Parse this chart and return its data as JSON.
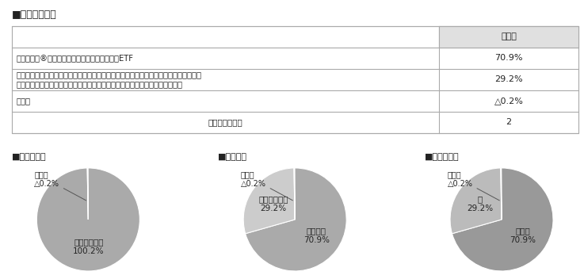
{
  "title_table": "■組入ファンド",
  "table_header": [
    "",
    "当期末"
  ],
  "table_rows": [
    [
      "バンガード®・トータル・ワールド・ストックETF",
      "70.9%"
    ],
    [
      "バンガード・インベストメント・シリーズ・ピーエルシー－バンガード・グローバル・\nボンド・インデックス・ファンド－インスティテューショナル円ヘッジシェア",
      "29.2%"
    ],
    [
      "その他",
      "△0.2%"
    ],
    [
      "組入ファンド数",
      "2"
    ]
  ],
  "pie_charts": [
    {
      "title": "■資産別配分",
      "slices": [
        {
          "label": "投資信託証券\n100.2%",
          "value": 100.2,
          "color": "#aaaaaa"
        },
        {
          "label": "その他\n△0.2%",
          "value": 0.2,
          "color": "#dddddd"
        }
      ],
      "annotation_label": "その他\n△0.2%",
      "annotation_slice_idx": 1
    },
    {
      "title": "■国別配分",
      "slices": [
        {
          "label": "アメリカ\n70.9%",
          "value": 70.9,
          "color": "#aaaaaa"
        },
        {
          "label": "アイルランド\n29.2%",
          "value": 29.2,
          "color": "#cccccc"
        },
        {
          "label": "その他\n△0.2%",
          "value": 0.2,
          "color": "#eeeeee"
        }
      ],
      "annotation_label": "その他\n△0.2%",
      "annotation_slice_idx": 2
    },
    {
      "title": "■通貨別配分",
      "slices": [
        {
          "label": "米ドル\n70.9%",
          "value": 70.9,
          "color": "#999999"
        },
        {
          "label": "円\n29.2%",
          "value": 29.2,
          "color": "#bbbbbb"
        },
        {
          "label": "その他\n△0.2%",
          "value": 0.2,
          "color": "#dddddd"
        }
      ],
      "annotation_label": "その他\n△0.2%",
      "annotation_slice_idx": 2
    }
  ],
  "bg_color": "#ffffff",
  "text_color": "#222222",
  "table_header_bg": "#e0e0e0",
  "table_border_color": "#aaaaaa"
}
